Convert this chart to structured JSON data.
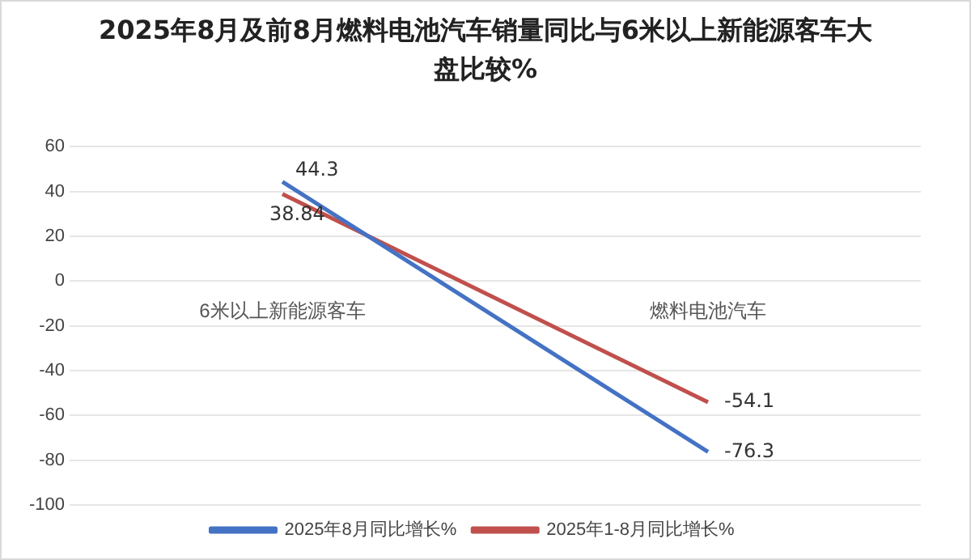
{
  "chart_data": {
    "type": "line",
    "title": "2025年8月及前8月燃料电池汽车销量同比与6米以上新能源客车大盘比较%",
    "categories": [
      "6米以上新能源客车",
      "燃料电池汽车"
    ],
    "series": [
      {
        "name": "2025年8月同比增长%",
        "color": "#4472c4",
        "values": [
          44.3,
          -76.3
        ]
      },
      {
        "name": "2025年1-8月同比增长%",
        "color": "#c0504d",
        "values": [
          38.84,
          -54.1
        ]
      }
    ],
    "ylim": [
      -100,
      60
    ],
    "yticks": [
      -100,
      -80,
      -60,
      -40,
      -20,
      0,
      20,
      40,
      60
    ],
    "grid": "y",
    "legend": "bottom",
    "data_labels": true,
    "marker": "none"
  }
}
